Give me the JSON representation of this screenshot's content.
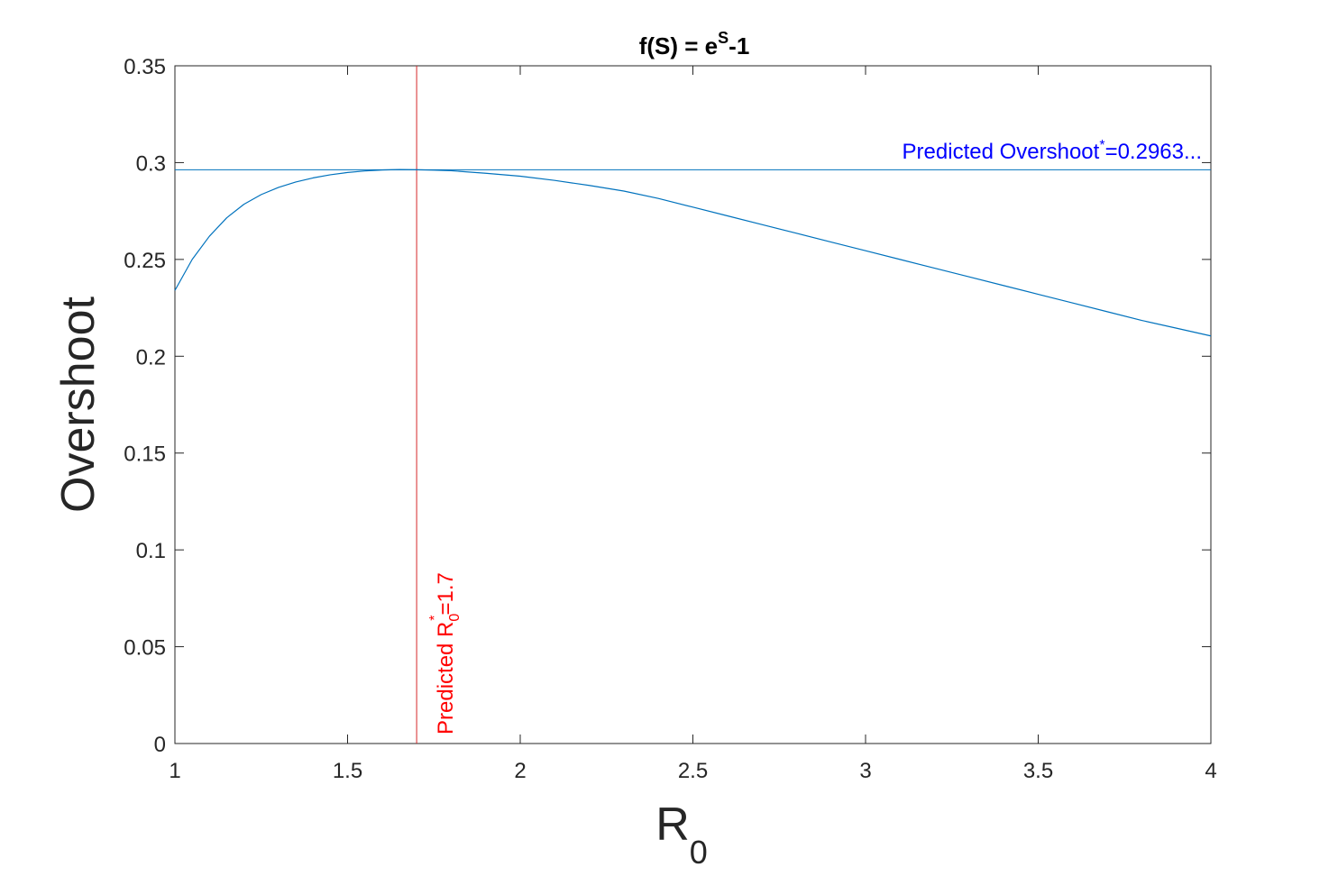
{
  "chart_data": {
    "type": "line",
    "title": {
      "prefix": "f(S) = e",
      "superscript": "S",
      "suffix": "-1"
    },
    "xlabel": {
      "main": "R",
      "subscript": "0"
    },
    "ylabel": "Overshoot",
    "xlim": [
      1,
      4
    ],
    "ylim": [
      0,
      0.35
    ],
    "xticks": [
      1,
      1.5,
      2,
      2.5,
      3,
      3.5,
      4
    ],
    "xtick_labels": [
      "1",
      "1.5",
      "2",
      "2.5",
      "3",
      "3.5",
      "4"
    ],
    "yticks": [
      0,
      0.05,
      0.1,
      0.15,
      0.2,
      0.25,
      0.3,
      0.35
    ],
    "ytick_labels": [
      "0",
      "0.05",
      "0.1",
      "0.15",
      "0.2",
      "0.25",
      "0.3",
      "0.35"
    ],
    "grid": false,
    "series": [
      {
        "color": "#0072bd",
        "x": [
          1.0,
          1.05,
          1.1,
          1.15,
          1.2,
          1.25,
          1.3,
          1.35,
          1.4,
          1.45,
          1.5,
          1.55,
          1.6,
          1.65,
          1.7,
          1.75,
          1.8,
          1.9,
          2.0,
          2.1,
          2.2,
          2.3,
          2.4,
          2.5,
          2.6,
          2.7,
          2.8,
          2.9,
          3.0,
          3.1,
          3.2,
          3.3,
          3.4,
          3.5,
          3.6,
          3.7,
          3.8,
          3.9,
          4.0
        ],
        "y": [
          0.234,
          0.25,
          0.262,
          0.2715,
          0.2785,
          0.2835,
          0.2872,
          0.29,
          0.2921,
          0.2937,
          0.2949,
          0.2957,
          0.2962,
          0.2964,
          0.2963,
          0.2961,
          0.2958,
          0.2945,
          0.293,
          0.2908,
          0.2882,
          0.2853,
          0.2815,
          0.277,
          0.2725,
          0.268,
          0.2635,
          0.259,
          0.2545,
          0.25,
          0.2455,
          0.241,
          0.2365,
          0.232,
          0.2275,
          0.223,
          0.2185,
          0.2145,
          0.2105
        ]
      }
    ],
    "reference_lines": {
      "horizontal": {
        "value": 0.2963,
        "color": "#0072bd",
        "label_prefix": "Predicted Overshoot",
        "label_sup": "*",
        "label_suffix": "=0.2963...",
        "label_color": "#0000ff"
      },
      "vertical": {
        "value": 1.7,
        "color": "#d62728",
        "label_prefix": "Predicted R",
        "label_sub": "0",
        "label_sup": "*",
        "label_suffix": "=1.7",
        "label_color": "#ff0000"
      }
    }
  }
}
